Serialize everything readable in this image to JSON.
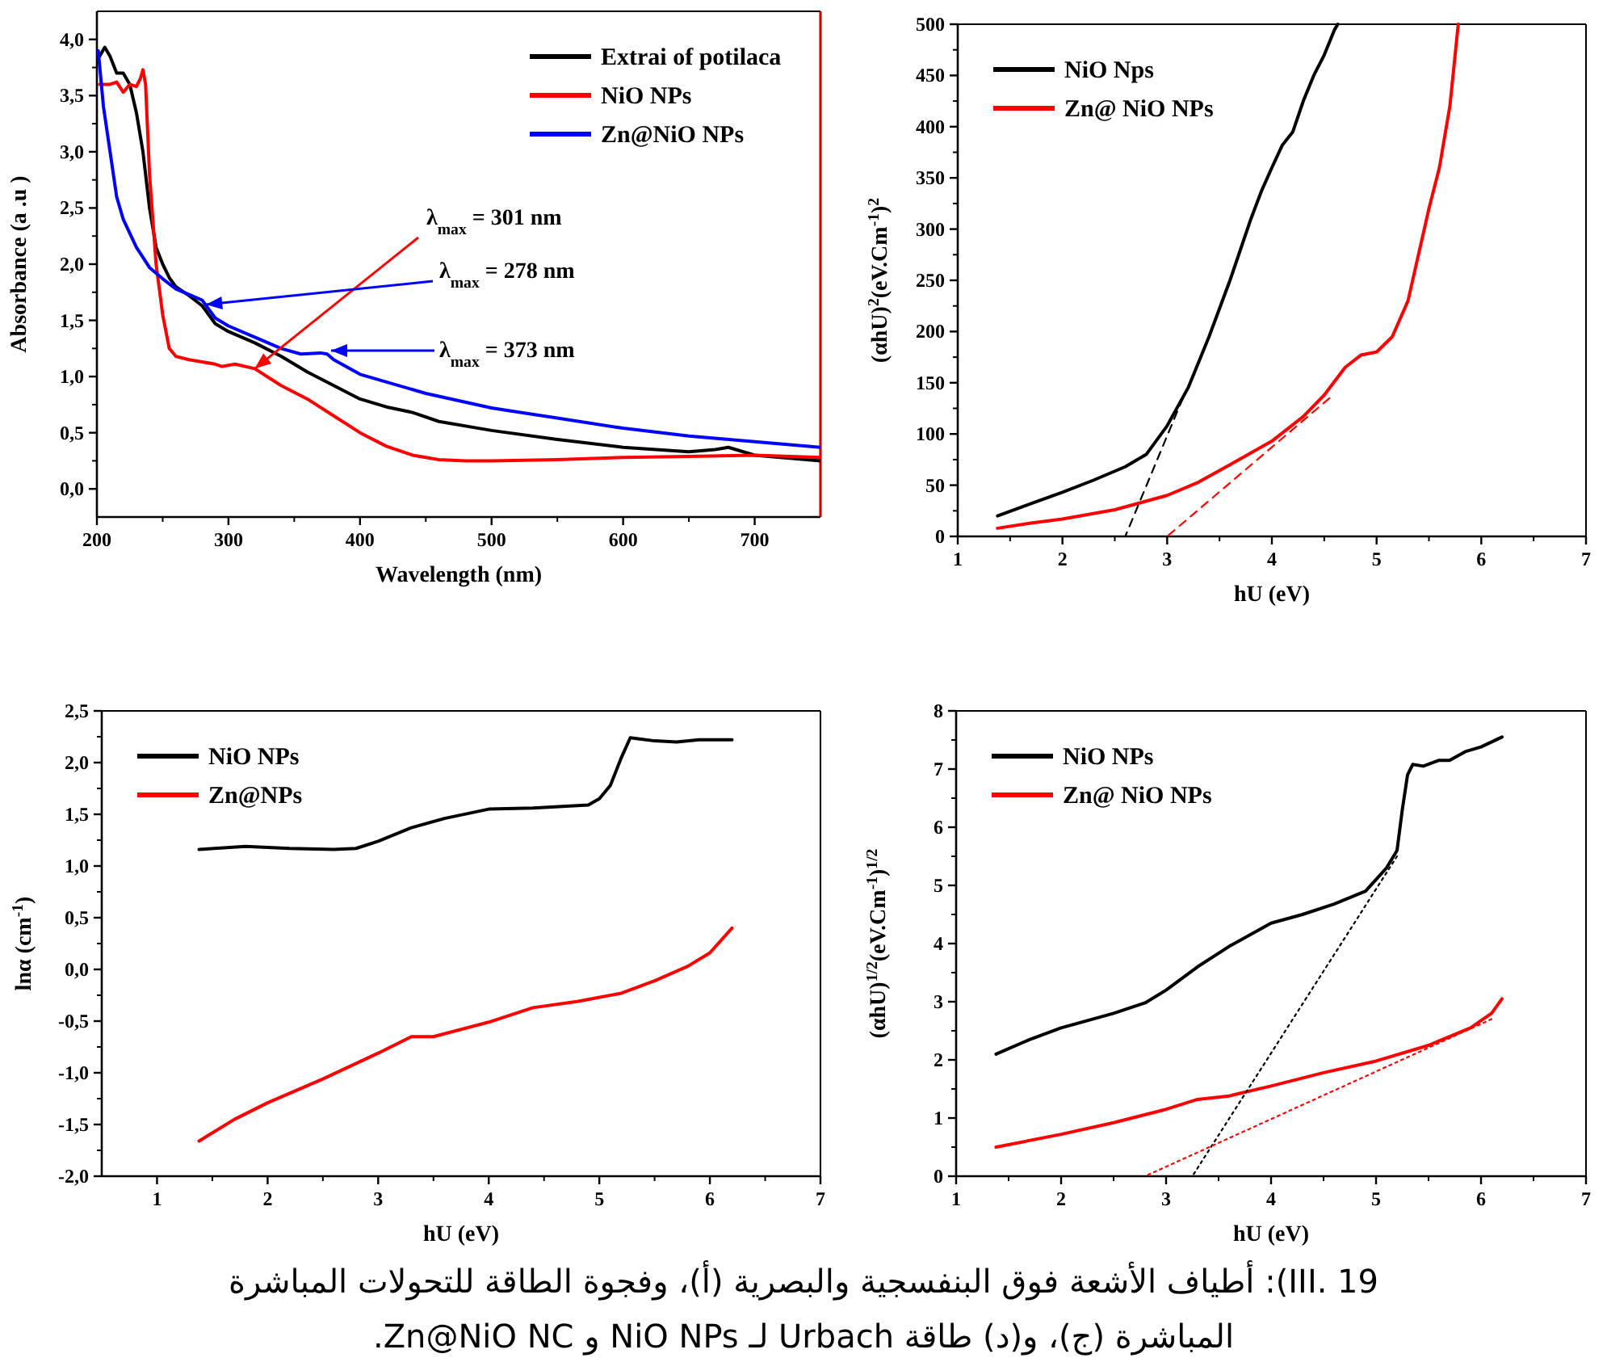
{
  "chart_data": [
    {
      "type": "line",
      "xlabel": "Wavelength (nm)",
      "ylabel": "Absorbance (a .u )",
      "xlim": [
        200,
        750
      ],
      "ylim": [
        -0.25,
        4.25
      ],
      "xticks": [
        200,
        300,
        400,
        500,
        600,
        700
      ],
      "yticks": [
        {
          "value": 0,
          "label": "0,0"
        },
        {
          "value": 0.5,
          "label": "0,5"
        },
        {
          "value": 1,
          "label": "1,0"
        },
        {
          "value": 1.5,
          "label": "1,5"
        },
        {
          "value": 2,
          "label": "2,0"
        },
        {
          "value": 2.5,
          "label": "2,5"
        },
        {
          "value": 3,
          "label": "3,0"
        },
        {
          "value": 3.5,
          "label": "3,5"
        },
        {
          "value": 4,
          "label": "4,0"
        }
      ],
      "legend": "top right",
      "series": [
        {
          "name": "Extrai of potilaca",
          "color": "#000000",
          "x": [
            202,
            206,
            210,
            215,
            220,
            225,
            230,
            235,
            240,
            245,
            250,
            255,
            260,
            270,
            280,
            290,
            300,
            320,
            340,
            360,
            380,
            400,
            420,
            440,
            460,
            500,
            550,
            600,
            650,
            670,
            680,
            700,
            750
          ],
          "values": [
            3.85,
            3.93,
            3.85,
            3.7,
            3.7,
            3.6,
            3.35,
            3.0,
            2.5,
            2.15,
            2.0,
            1.88,
            1.8,
            1.72,
            1.63,
            1.47,
            1.4,
            1.3,
            1.18,
            1.04,
            0.92,
            0.8,
            0.73,
            0.68,
            0.6,
            0.52,
            0.44,
            0.37,
            0.33,
            0.35,
            0.37,
            0.3,
            0.25
          ]
        },
        {
          "name": " NiO NPs",
          "color": "#ff0000",
          "x": [
            202,
            210,
            215,
            220,
            225,
            230,
            233,
            235,
            237,
            240,
            245,
            250,
            255,
            260,
            270,
            280,
            290,
            295,
            305,
            320,
            340,
            360,
            380,
            400,
            420,
            440,
            460,
            480,
            500,
            550,
            600,
            650,
            700,
            750
          ],
          "values": [
            3.6,
            3.6,
            3.62,
            3.53,
            3.6,
            3.58,
            3.65,
            3.73,
            3.6,
            2.8,
            2.0,
            1.55,
            1.25,
            1.18,
            1.15,
            1.13,
            1.11,
            1.09,
            1.11,
            1.07,
            0.92,
            0.8,
            0.65,
            0.5,
            0.38,
            0.3,
            0.26,
            0.25,
            0.25,
            0.26,
            0.28,
            0.29,
            0.3,
            0.28
          ]
        },
        {
          "name": "Zn@NiO NPs",
          "color": "#0000ff",
          "x": [
            201,
            205,
            210,
            215,
            220,
            230,
            240,
            250,
            260,
            270,
            280,
            290,
            300,
            320,
            340,
            355,
            370,
            375,
            380,
            400,
            450,
            500,
            550,
            600,
            650,
            700,
            750
          ],
          "values": [
            3.9,
            3.4,
            3.0,
            2.6,
            2.4,
            2.15,
            1.97,
            1.87,
            1.78,
            1.73,
            1.68,
            1.52,
            1.45,
            1.35,
            1.25,
            1.2,
            1.21,
            1.2,
            1.15,
            1.02,
            0.85,
            0.72,
            0.63,
            0.54,
            0.47,
            0.42,
            0.37
          ]
        }
      ],
      "annotations": [
        {
          "text": "λ$_{max}$ = 301 nm",
          "x": 320,
          "y": 1.07
        },
        {
          "text": "λ$_{max}$ = 278 nm",
          "x": 283,
          "y": 1.64
        },
        "λ$_{max}$ = 373 nm"
      ]
    },
    {
      "type": "line",
      "xlabel": "hU (eV)",
      "ylabel": "(αhU)$^{2}$(eV.Cm$^{-1}$)$^{2}$",
      "xlim": [
        1,
        7
      ],
      "ylim": [
        0,
        500
      ],
      "xticks": [
        1,
        2,
        3,
        4,
        5,
        6,
        7
      ],
      "yticks": [
        0,
        50,
        100,
        150,
        200,
        250,
        300,
        350,
        400,
        450,
        500
      ],
      "legend": "top left",
      "series": [
        {
          "name": "NiO Nps",
          "color": "#000000",
          "x": [
            1.38,
            1.7,
            2,
            2.3,
            2.6,
            2.8,
            3.0,
            3.2,
            3.4,
            3.6,
            3.8,
            3.9,
            4.0,
            4.1,
            4.2,
            4.3,
            4.4,
            4.5,
            4.6,
            4.63
          ],
          "values": [
            20,
            32,
            43,
            55,
            68,
            80,
            108,
            145,
            195,
            250,
            310,
            337,
            360,
            382,
            395,
            425,
            450,
            470,
            495,
            500
          ]
        },
        {
          "name": "Zn@ NiO NPs",
          "color": "#ff0000",
          "x": [
            1.38,
            1.7,
            2,
            2.5,
            3,
            3.3,
            3.6,
            4,
            4.3,
            4.5,
            4.7,
            4.85,
            5,
            5.15,
            5.3,
            5.4,
            5.5,
            5.6,
            5.7,
            5.75,
            5.78
          ],
          "values": [
            8,
            13,
            17,
            26,
            40,
            53,
            70,
            93,
            117,
            138,
            165,
            177,
            180,
            195,
            230,
            275,
            320,
            360,
            420,
            470,
            500
          ]
        },
        {
          "color": "#000000",
          "line_style": "dashed",
          "x": [
            3.15,
            2.6
          ],
          "values": [
            135,
            0
          ]
        },
        {
          "color": "#ff0000",
          "line_style": "dashed",
          "x": [
            4.55,
            3.0
          ],
          "values": [
            135,
            0
          ]
        }
      ]
    },
    {
      "type": "line",
      "xlabel": "hU (eV)",
      "ylabel": "lnα (cm$^{-1}$)",
      "xlim": [
        0.5,
        7
      ],
      "ylim": [
        -2.0,
        2.5
      ],
      "xticks": [
        1,
        2,
        3,
        4,
        5,
        6,
        7
      ],
      "yticks": [
        {
          "value": -2,
          "label": "-2,0"
        },
        {
          "value": -1.5,
          "label": "-1,5"
        },
        {
          "value": -1,
          "label": "-1,0"
        },
        {
          "value": -0.5,
          "label": "-0,5"
        },
        {
          "value": 0,
          "label": "0,0"
        },
        {
          "value": 0.5,
          "label": "0,5"
        },
        {
          "value": 1,
          "label": "1,0"
        },
        {
          "value": 1.5,
          "label": "1,5"
        },
        {
          "value": 2,
          "label": "2,0"
        },
        {
          "value": 2.5,
          "label": "2,5"
        }
      ],
      "legend": "top left",
      "series": [
        {
          "name": "NiO NPs",
          "color": "#000000",
          "x": [
            1.38,
            1.8,
            2.2,
            2.6,
            2.8,
            3.0,
            3.3,
            3.6,
            4.0,
            4.4,
            4.9,
            5.0,
            5.1,
            5.2,
            5.28,
            5.35,
            5.5,
            5.7,
            5.9,
            6.2
          ],
          "values": [
            1.16,
            1.19,
            1.17,
            1.16,
            1.17,
            1.24,
            1.37,
            1.46,
            1.55,
            1.56,
            1.59,
            1.65,
            1.78,
            2.05,
            2.24,
            2.23,
            2.21,
            2.2,
            2.22,
            2.22
          ]
        },
        {
          "name": "Zn@NPs",
          "color": "#ff0000",
          "x": [
            1.38,
            1.7,
            2.0,
            2.5,
            3.0,
            3.3,
            3.5,
            4.0,
            4.4,
            4.8,
            5.2,
            5.5,
            5.8,
            6.0,
            6.2
          ],
          "values": [
            -1.66,
            -1.45,
            -1.29,
            -1.06,
            -0.81,
            -0.65,
            -0.65,
            -0.51,
            -0.37,
            -0.31,
            -0.23,
            -0.11,
            0.03,
            0.16,
            0.4
          ]
        }
      ],
      "annotations": [
        "III. 19): أطياف الأشعة فوق البنفسجية والبصرية (أ)، وفجوة الطاقة للتحولات المباشرة",
        "المباشرة (ج)، و(د) طاقة Urbach لـ NiO NPs و Zn@NiO NC."
      ]
    },
    {
      "type": "line",
      "xlabel": "hU (eV)",
      "ylabel": "(αhU)$^{1/2}$(eV.Cm$^{-1}$)$^{1/2}$",
      "xlim": [
        1,
        7
      ],
      "ylim": [
        0,
        8
      ],
      "xticks": [
        1,
        2,
        3,
        4,
        5,
        6,
        7
      ],
      "yticks": [
        0,
        1,
        2,
        3,
        4,
        5,
        6,
        7,
        8
      ],
      "legend": "top left",
      "series": [
        {
          "name": "NiO NPs",
          "color": "#000000",
          "x": [
            1.38,
            1.7,
            2,
            2.5,
            2.8,
            3.0,
            3.3,
            3.6,
            4.0,
            4.3,
            4.6,
            4.9,
            5.1,
            5.2,
            5.25,
            5.3,
            5.35,
            5.45,
            5.6,
            5.7,
            5.85,
            6.0,
            6.2
          ],
          "values": [
            2.1,
            2.35,
            2.55,
            2.8,
            2.98,
            3.2,
            3.6,
            3.95,
            4.35,
            4.5,
            4.68,
            4.9,
            5.3,
            5.6,
            6.3,
            6.9,
            7.08,
            7.05,
            7.15,
            7.15,
            7.3,
            7.38,
            7.55
          ]
        },
        {
          "name": "Zn@ NiO NPs",
          "color": "#ff0000",
          "x": [
            1.38,
            2.0,
            2.5,
            3.0,
            3.3,
            3.6,
            4.0,
            4.5,
            5.0,
            5.5,
            5.9,
            6.1,
            6.2
          ],
          "values": [
            0.5,
            0.72,
            0.92,
            1.15,
            1.32,
            1.38,
            1.55,
            1.78,
            1.98,
            2.25,
            2.55,
            2.8,
            3.05
          ]
        },
        {
          "color": "#000000",
          "line_style": "dotted",
          "x": [
            5.2,
            3.25
          ],
          "values": [
            5.5,
            0
          ]
        },
        {
          "color": "#ff0000",
          "line_style": "dotted",
          "x": [
            6.1,
            2.8
          ],
          "values": [
            2.7,
            0
          ]
        }
      ]
    }
  ]
}
